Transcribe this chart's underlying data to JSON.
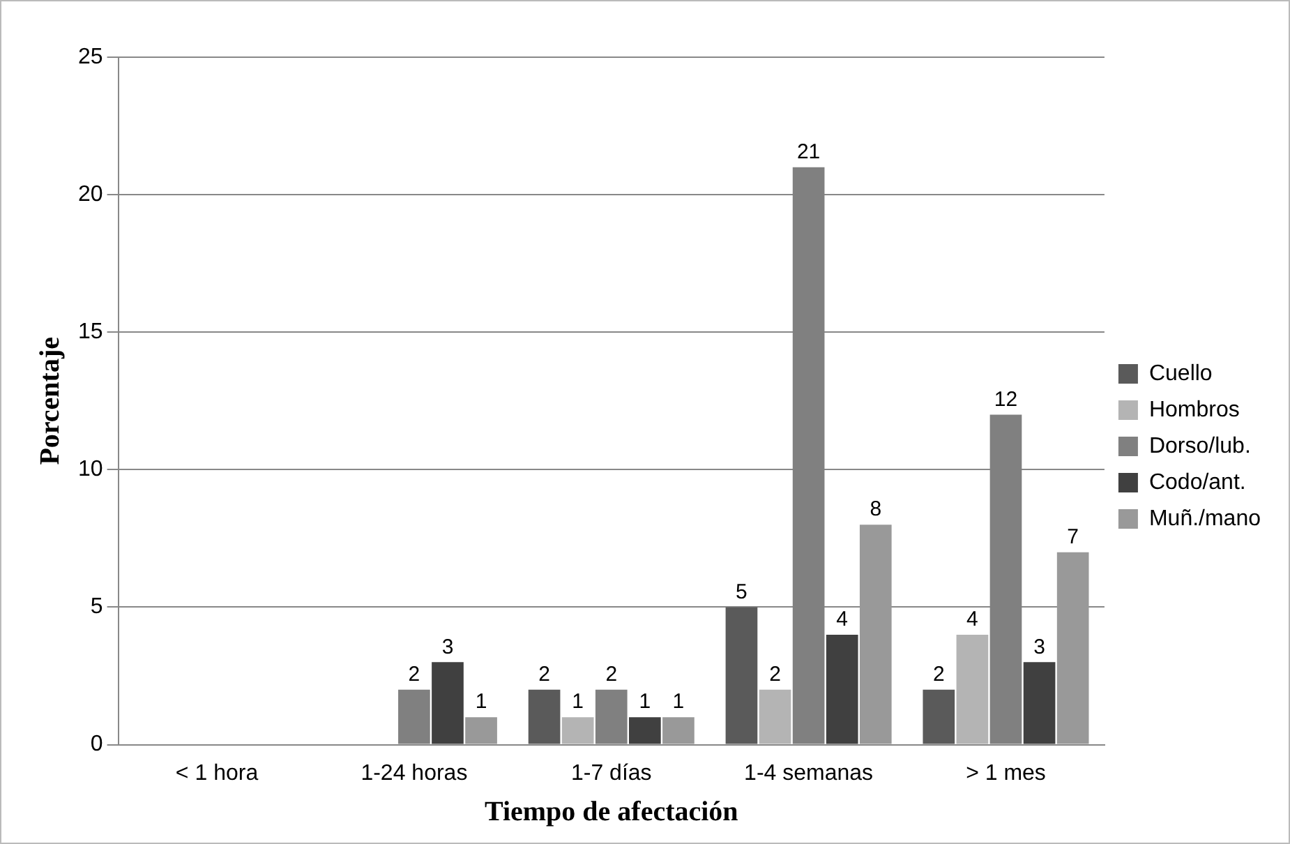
{
  "chart_data": {
    "type": "bar",
    "xlabel": "Tiempo de afectación",
    "ylabel": "Porcentaje",
    "categories": [
      "< 1 hora",
      "1-24 horas",
      "1-7 días",
      "1-4 semanas",
      "> 1 mes"
    ],
    "series": [
      {
        "name": "Cuello",
        "color": "#5a5a5a",
        "values": [
          0,
          0,
          2,
          5,
          2
        ],
        "value_labels": [
          null,
          null,
          "2",
          "5",
          "2"
        ]
      },
      {
        "name": "Hombros",
        "color": "#b4b4b4",
        "values": [
          0,
          0,
          1,
          2,
          4
        ],
        "value_labels": [
          null,
          null,
          "1",
          "2",
          "4"
        ]
      },
      {
        "name": "Dorso/lub.",
        "color": "#808080",
        "values": [
          0,
          2,
          2,
          21,
          12
        ],
        "value_labels": [
          null,
          "2",
          "2",
          "21",
          "12"
        ]
      },
      {
        "name": "Codo/ant.",
        "color": "#404040",
        "values": [
          0,
          3,
          1,
          4,
          3
        ],
        "value_labels": [
          null,
          "3",
          "1",
          "4",
          "3"
        ]
      },
      {
        "name": "Muñ./mano",
        "color": "#999999",
        "values": [
          0,
          1,
          1,
          8,
          7
        ],
        "value_labels": [
          null,
          "1",
          "1",
          "8",
          "7"
        ]
      }
    ],
    "ylim": [
      0,
      25
    ],
    "yticks": [
      0,
      5,
      10,
      15,
      20,
      25
    ],
    "grid": "y",
    "legend": "right"
  }
}
